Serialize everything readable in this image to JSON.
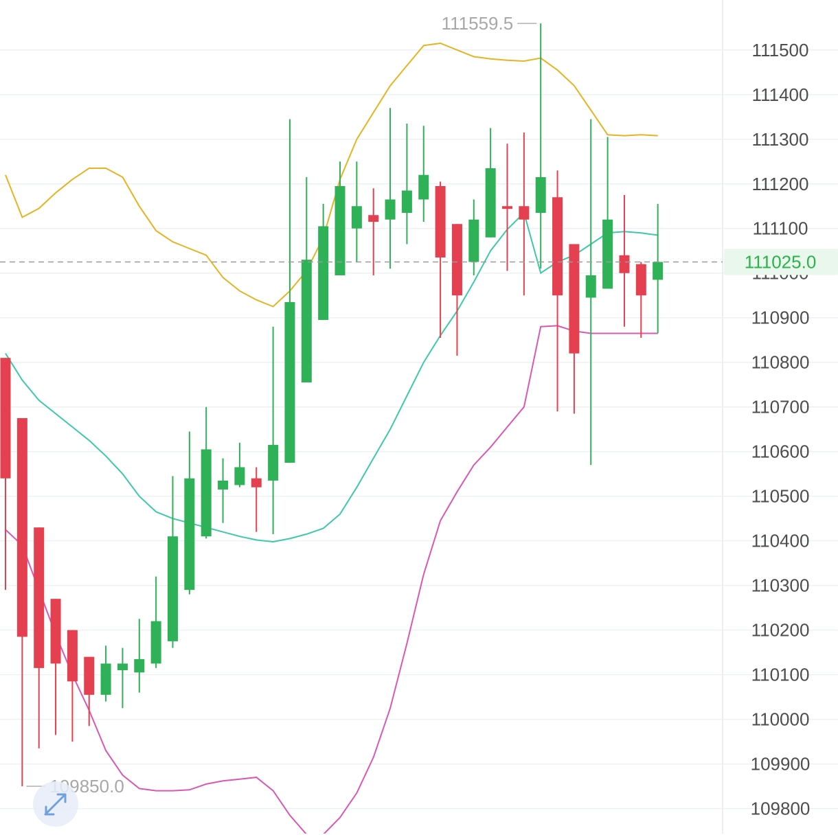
{
  "chart_data": {
    "type": "candlestick",
    "y_ticks": [
      "111500",
      "111400",
      "111300",
      "111200",
      "111100",
      "111000",
      "110900",
      "110800",
      "110700",
      "110600",
      "110500",
      "110400",
      "110300",
      "110200",
      "110100",
      "110000",
      "109900",
      "109800"
    ],
    "ylim": [
      109744,
      111612
    ],
    "current_price": "111025.0",
    "current_price_value": 111025,
    "max_label": "111559.5",
    "min_label": "109850.0",
    "colors": {
      "up": "#2fb157",
      "down": "#e5404f",
      "upper_band": "#e6b321",
      "middle_band": "#3cc9a8",
      "lower_band": "#d957b4",
      "grid": "#eef1f4",
      "current_line": "#9a9a9a",
      "price_tag_bg": "#e9f7ec",
      "price_tag_text": "#2bb34a"
    },
    "candles": [
      {
        "o": 110810,
        "h": 110810,
        "l": 110290,
        "c": 110540
      },
      {
        "o": 110675,
        "h": 110675,
        "l": 109850,
        "c": 110185
      },
      {
        "o": 110430,
        "h": 110430,
        "l": 109935,
        "c": 110115
      },
      {
        "o": 110270,
        "h": 110270,
        "l": 109965,
        "c": 110125
      },
      {
        "o": 110200,
        "h": 110200,
        "l": 109950,
        "c": 110085
      },
      {
        "o": 110140,
        "h": 110140,
        "l": 109985,
        "c": 110055
      },
      {
        "o": 110055,
        "h": 110165,
        "l": 110040,
        "c": 110125
      },
      {
        "o": 110110,
        "h": 110160,
        "l": 110025,
        "c": 110125
      },
      {
        "o": 110105,
        "h": 110225,
        "l": 110060,
        "c": 110135
      },
      {
        "o": 110125,
        "h": 110320,
        "l": 110115,
        "c": 110220
      },
      {
        "o": 110175,
        "h": 110545,
        "l": 110160,
        "c": 110410
      },
      {
        "o": 110290,
        "h": 110645,
        "l": 110280,
        "c": 110540
      },
      {
        "o": 110410,
        "h": 110700,
        "l": 110405,
        "c": 110605
      },
      {
        "o": 110515,
        "h": 110585,
        "l": 110440,
        "c": 110535
      },
      {
        "o": 110525,
        "h": 110620,
        "l": 110520,
        "c": 110565
      },
      {
        "o": 110540,
        "h": 110565,
        "l": 110420,
        "c": 110520
      },
      {
        "o": 110535,
        "h": 110880,
        "l": 110415,
        "c": 110615
      },
      {
        "o": 110575,
        "h": 111345,
        "l": 110575,
        "c": 110935
      },
      {
        "o": 110755,
        "h": 111215,
        "l": 110755,
        "c": 111030
      },
      {
        "o": 110895,
        "h": 111155,
        "l": 110895,
        "c": 111105
      },
      {
        "o": 110995,
        "h": 111250,
        "l": 110995,
        "c": 111195
      },
      {
        "o": 111100,
        "h": 111250,
        "l": 111025,
        "c": 111150
      },
      {
        "o": 111130,
        "h": 111190,
        "l": 110995,
        "c": 111115
      },
      {
        "o": 111120,
        "h": 111370,
        "l": 111010,
        "c": 111165
      },
      {
        "o": 111135,
        "h": 111335,
        "l": 111065,
        "c": 111185
      },
      {
        "o": 111165,
        "h": 111330,
        "l": 111115,
        "c": 111220
      },
      {
        "o": 111195,
        "h": 111205,
        "l": 110855,
        "c": 111035
      },
      {
        "o": 111110,
        "h": 111110,
        "l": 110815,
        "c": 110950
      },
      {
        "o": 111025,
        "h": 111165,
        "l": 110995,
        "c": 111120
      },
      {
        "o": 111080,
        "h": 111325,
        "l": 111080,
        "c": 111235
      },
      {
        "o": 111150,
        "h": 111290,
        "l": 111005,
        "c": 111145
      },
      {
        "o": 111150,
        "h": 111315,
        "l": 110950,
        "c": 111120
      },
      {
        "o": 111135,
        "h": 111559.5,
        "l": 111010,
        "c": 111215
      },
      {
        "o": 111170,
        "h": 111230,
        "l": 110690,
        "c": 110950
      },
      {
        "o": 111065,
        "h": 111065,
        "l": 110685,
        "c": 110820
      },
      {
        "o": 110945,
        "h": 111345,
        "l": 110570,
        "c": 110995
      },
      {
        "o": 110965,
        "h": 111305,
        "l": 110965,
        "c": 111120
      },
      {
        "o": 111040,
        "h": 111175,
        "l": 110880,
        "c": 111000
      },
      {
        "o": 111020,
        "h": 111025,
        "l": 110855,
        "c": 110950
      },
      {
        "o": 110985,
        "h": 111155,
        "l": 110865,
        "c": 111025
      }
    ],
    "upper_band": [
      111220,
      111125,
      111145,
      111180,
      111210,
      111235,
      111235,
      111215,
      111150,
      111095,
      111070,
      111055,
      111040,
      110990,
      110960,
      110940,
      110925,
      110960,
      111005,
      111080,
      111210,
      111300,
      111360,
      111420,
      111465,
      111510,
      111515,
      111500,
      111485,
      111480,
      111477,
      111475,
      111482,
      111455,
      111420,
      111365,
      111310,
      111308,
      111310,
      111308
    ],
    "middle_band": [
      110820,
      110760,
      110715,
      110685,
      110655,
      110625,
      110590,
      110550,
      110500,
      110465,
      110450,
      110440,
      110430,
      110420,
      110410,
      110402,
      110398,
      110405,
      110415,
      110428,
      110460,
      110520,
      110585,
      110650,
      110725,
      110800,
      110860,
      110915,
      110980,
      111050,
      111098,
      111135,
      111000,
      111025,
      111040,
      111065,
      111090,
      111093,
      111090,
      111085
    ],
    "lower_band": [
      110425,
      110390,
      110290,
      110190,
      110100,
      110020,
      109930,
      109875,
      109845,
      109840,
      109840,
      109842,
      109855,
      109862,
      109866,
      109870,
      109840,
      109785,
      109742,
      109742,
      109780,
      109835,
      109915,
      110025,
      110170,
      110325,
      110445,
      110510,
      110570,
      110610,
      110655,
      110700,
      110880,
      110882,
      110870,
      110865,
      110865,
      110865,
      110865,
      110865
    ]
  }
}
